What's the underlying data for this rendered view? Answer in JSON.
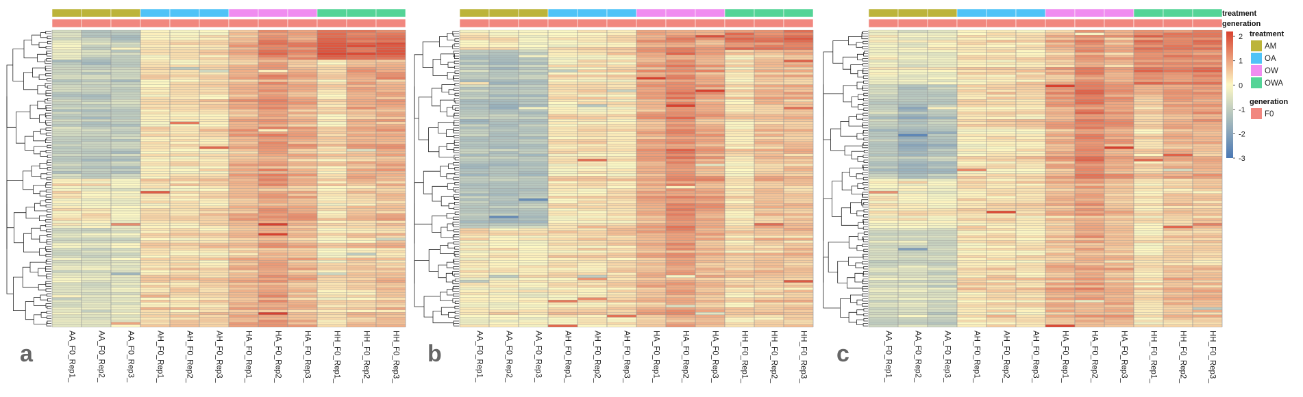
{
  "figure": {
    "panels": [
      {
        "letter": "a",
        "seed": 11
      },
      {
        "letter": "b",
        "seed": 23
      },
      {
        "letter": "c",
        "seed": 37
      }
    ]
  },
  "chart_data": {
    "type": "heatmap",
    "columns": [
      "AA_F0_Rep1_",
      "AA_F0_Rep2_",
      "AA_F0_Rep3_",
      "AH_F0_Rep1_",
      "AH_F0_Rep2_",
      "AH_F0_Rep3_",
      "HA_F0_Rep1_",
      "HA_F0_Rep2_",
      "HA_F0_Rep3_",
      "HH_F0_Rep1_",
      "HH_F0_Rep2_",
      "HH_F0_Rep3_"
    ],
    "row_count": 120,
    "column_annotation": {
      "treatment": [
        "AM",
        "AM",
        "AM",
        "OA",
        "OA",
        "OA",
        "OW",
        "OW",
        "OW",
        "OWA",
        "OWA",
        "OWA"
      ],
      "generation": [
        "F0",
        "F0",
        "F0",
        "F0",
        "F0",
        "F0",
        "F0",
        "F0",
        "F0",
        "F0",
        "F0",
        "F0"
      ]
    },
    "annotation_labels": {
      "treatment": "treatment",
      "generation": "generation"
    },
    "legend": {
      "treatment": {
        "title": "treatment",
        "items": [
          {
            "label": "AM",
            "color": "#bcb43a"
          },
          {
            "label": "OA",
            "color": "#4fc3f7"
          },
          {
            "label": "OW",
            "color": "#f08cf0"
          },
          {
            "label": "OWA",
            "color": "#54d497"
          }
        ]
      },
      "generation": {
        "title": "generation",
        "items": [
          {
            "label": "F0",
            "color": "#f1877f"
          }
        ]
      },
      "colorbar": {
        "ticks": [
          "2",
          "1",
          "0",
          "-1",
          "-2",
          "-3"
        ],
        "range": [
          -3,
          2.2
        ],
        "colors": {
          "low": "#4a78b4",
          "mid": "#fdf8c4",
          "high": "#d8412e"
        }
      }
    },
    "column_group_means": {
      "a": {
        "blocks": [
          {
            "rows": 12,
            "means": [
              -0.4,
              -0.9,
              -1.1,
              0.1,
              0.2,
              0.3,
              0.8,
              1.4,
              1.2,
              1.8,
              1.6,
              1.7
            ]
          },
          {
            "rows": 48,
            "means": [
              -1.0,
              -1.1,
              -1.0,
              0.2,
              0.2,
              0.3,
              0.8,
              1.1,
              0.8,
              0.3,
              0.8,
              0.9
            ]
          },
          {
            "rows": 20,
            "means": [
              0.1,
              0.0,
              -0.2,
              0.2,
              0.2,
              0.3,
              0.7,
              1.0,
              0.8,
              0.2,
              0.5,
              0.6
            ]
          },
          {
            "rows": 40,
            "means": [
              -0.5,
              -0.6,
              -0.5,
              0.3,
              0.3,
              0.3,
              0.7,
              0.9,
              0.7,
              0.2,
              0.4,
              0.5
            ]
          }
        ]
      },
      "b": {
        "blocks": [
          {
            "rows": 8,
            "means": [
              0.1,
              0.1,
              -0.1,
              0.0,
              0.2,
              0.3,
              1.0,
              1.2,
              0.9,
              1.5,
              1.4,
              1.6
            ]
          },
          {
            "rows": 72,
            "means": [
              -1.1,
              -1.2,
              -1.1,
              0.2,
              0.3,
              0.3,
              1.0,
              1.3,
              1.0,
              0.3,
              0.7,
              0.7
            ]
          },
          {
            "rows": 40,
            "means": [
              0.1,
              0.1,
              0.1,
              0.3,
              0.3,
              0.4,
              0.8,
              1.1,
              0.8,
              0.4,
              0.6,
              0.6
            ]
          }
        ]
      },
      "c": {
        "blocks": [
          {
            "rows": 22,
            "means": [
              -0.2,
              -0.3,
              -0.2,
              0.2,
              0.2,
              0.3,
              0.7,
              1.2,
              0.8,
              1.4,
              1.3,
              1.4
            ]
          },
          {
            "rows": 38,
            "means": [
              -1.0,
              -1.4,
              -1.2,
              0.2,
              0.3,
              0.3,
              0.9,
              1.4,
              1.1,
              0.5,
              0.9,
              0.9
            ]
          },
          {
            "rows": 20,
            "means": [
              0.1,
              0.1,
              0.0,
              0.3,
              0.3,
              0.3,
              0.7,
              1.0,
              0.7,
              0.2,
              0.5,
              0.5
            ]
          },
          {
            "rows": 40,
            "means": [
              -0.6,
              -0.5,
              -0.7,
              0.3,
              0.4,
              0.3,
              0.8,
              1.0,
              0.8,
              0.3,
              0.6,
              0.6
            ]
          }
        ]
      }
    }
  }
}
